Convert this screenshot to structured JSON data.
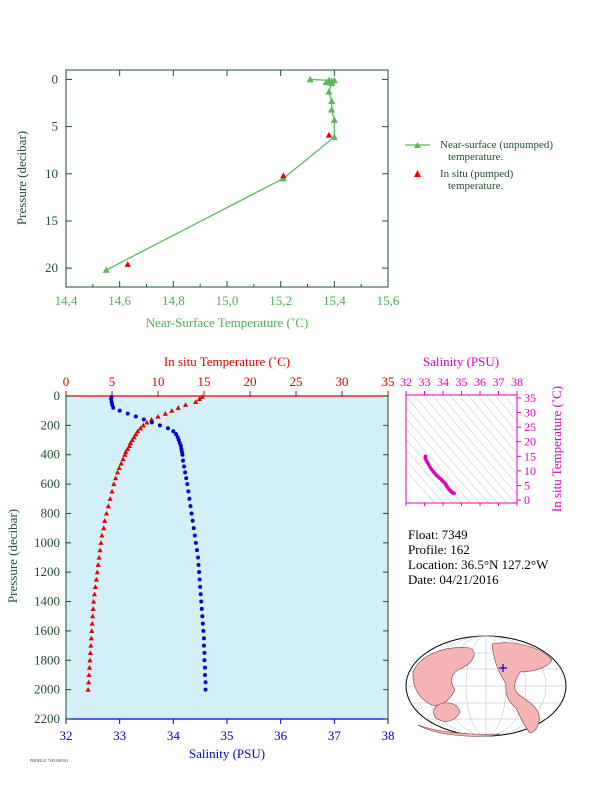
{
  "colors": {
    "green": "#5cb85c",
    "green_axis": "#4caf50",
    "red": "#e00000",
    "blue": "#0000cc",
    "magenta": "#e000c0",
    "dark": "#1f4f2f",
    "panel_bg": "#d3f0f8"
  },
  "chart_data": [
    {
      "type": "line",
      "xlabel": "Near-Surface Temperature (˚C)",
      "ylabel": "Pressure (decibar)",
      "xlim": [
        14.4,
        15.6
      ],
      "ylim": [
        22,
        -1
      ],
      "x_ticks": [
        "14,4",
        "14,6",
        "14,8",
        "15,0",
        "15,2",
        "15,4",
        "15,6"
      ],
      "y_ticks": [
        "0",
        "5",
        "10",
        "15",
        "20"
      ],
      "series": [
        {
          "name": "Near-surface (unpumped) temperature.",
          "marker": "triangle",
          "line": true,
          "points": [
            [
              15.31,
              0.0
            ],
            [
              15.38,
              0.1
            ],
            [
              15.39,
              0.2
            ],
            [
              15.4,
              0.1
            ],
            [
              15.37,
              0.3
            ],
            [
              15.39,
              0.4
            ],
            [
              15.38,
              1.3
            ],
            [
              15.39,
              2.3
            ],
            [
              15.39,
              3.2
            ],
            [
              15.4,
              4.3
            ],
            [
              15.4,
              6.1
            ],
            [
              15.21,
              10.5
            ],
            [
              14.55,
              20.2
            ]
          ]
        },
        {
          "name": "In situ (pumped) temperature.",
          "marker": "triangle",
          "line": false,
          "points": [
            [
              15.38,
              5.9
            ],
            [
              15.21,
              10.2
            ],
            [
              14.63,
              19.6
            ]
          ]
        }
      ]
    },
    {
      "type": "scatter",
      "ylabel": "Pressure (decibar)",
      "top_axis": {
        "label": "In situ Temperature (˚C)",
        "range": [
          0,
          35
        ],
        "ticks": [
          "0",
          "5",
          "10",
          "15",
          "20",
          "25",
          "30",
          "35"
        ]
      },
      "bottom_axis": {
        "label": "Salinity (PSU)",
        "range": [
          32,
          38
        ],
        "ticks": [
          "32",
          "33",
          "34",
          "35",
          "36",
          "37",
          "38"
        ]
      },
      "ylim": [
        2200,
        0
      ],
      "y_ticks": [
        "0",
        "200",
        "400",
        "600",
        "800",
        "1000",
        "1200",
        "1400",
        "1600",
        "1800",
        "2000",
        "2200"
      ],
      "temperature": [
        [
          14.8,
          5
        ],
        [
          14.5,
          20
        ],
        [
          14.1,
          40
        ],
        [
          13.0,
          60
        ],
        [
          12.2,
          80
        ],
        [
          11.5,
          100
        ],
        [
          10.8,
          120
        ],
        [
          10.0,
          140
        ],
        [
          9.3,
          160
        ],
        [
          8.8,
          180
        ],
        [
          8.4,
          200
        ],
        [
          8.1,
          220
        ],
        [
          7.8,
          240
        ],
        [
          7.6,
          260
        ],
        [
          7.4,
          280
        ],
        [
          7.2,
          300
        ],
        [
          7.0,
          320
        ],
        [
          6.9,
          340
        ],
        [
          6.7,
          360
        ],
        [
          6.5,
          380
        ],
        [
          6.4,
          400
        ],
        [
          6.2,
          430
        ],
        [
          6.0,
          460
        ],
        [
          5.8,
          490
        ],
        [
          5.6,
          520
        ],
        [
          5.4,
          560
        ],
        [
          5.2,
          600
        ],
        [
          5.0,
          650
        ],
        [
          4.8,
          700
        ],
        [
          4.6,
          750
        ],
        [
          4.4,
          800
        ],
        [
          4.2,
          850
        ],
        [
          4.1,
          900
        ],
        [
          3.9,
          950
        ],
        [
          3.8,
          1000
        ],
        [
          3.7,
          1050
        ],
        [
          3.6,
          1100
        ],
        [
          3.5,
          1150
        ],
        [
          3.4,
          1200
        ],
        [
          3.3,
          1250
        ],
        [
          3.2,
          1300
        ],
        [
          3.1,
          1350
        ],
        [
          3.0,
          1400
        ],
        [
          2.95,
          1450
        ],
        [
          2.9,
          1500
        ],
        [
          2.85,
          1550
        ],
        [
          2.8,
          1600
        ],
        [
          2.75,
          1650
        ],
        [
          2.7,
          1700
        ],
        [
          2.65,
          1750
        ],
        [
          2.6,
          1800
        ],
        [
          2.55,
          1850
        ],
        [
          2.5,
          1900
        ],
        [
          2.45,
          1950
        ],
        [
          2.4,
          2000
        ]
      ],
      "salinity": [
        [
          32.85,
          5
        ],
        [
          32.84,
          20
        ],
        [
          32.85,
          40
        ],
        [
          32.86,
          60
        ],
        [
          32.88,
          80
        ],
        [
          33.0,
          100
        ],
        [
          33.15,
          120
        ],
        [
          33.3,
          140
        ],
        [
          33.45,
          160
        ],
        [
          33.6,
          180
        ],
        [
          33.75,
          200
        ],
        [
          33.9,
          220
        ],
        [
          34.0,
          240
        ],
        [
          34.05,
          260
        ],
        [
          34.08,
          280
        ],
        [
          34.1,
          300
        ],
        [
          34.12,
          320
        ],
        [
          34.14,
          340
        ],
        [
          34.15,
          360
        ],
        [
          34.16,
          380
        ],
        [
          34.17,
          400
        ],
        [
          34.18,
          440
        ],
        [
          34.2,
          480
        ],
        [
          34.22,
          520
        ],
        [
          34.24,
          560
        ],
        [
          34.26,
          600
        ],
        [
          34.28,
          650
        ],
        [
          34.3,
          700
        ],
        [
          34.32,
          750
        ],
        [
          34.34,
          800
        ],
        [
          34.36,
          850
        ],
        [
          34.38,
          900
        ],
        [
          34.4,
          950
        ],
        [
          34.42,
          1000
        ],
        [
          34.44,
          1050
        ],
        [
          34.46,
          1100
        ],
        [
          34.47,
          1150
        ],
        [
          34.48,
          1200
        ],
        [
          34.49,
          1250
        ],
        [
          34.5,
          1300
        ],
        [
          34.51,
          1350
        ],
        [
          34.52,
          1400
        ],
        [
          34.53,
          1450
        ],
        [
          34.54,
          1500
        ],
        [
          34.55,
          1550
        ],
        [
          34.56,
          1600
        ],
        [
          34.57,
          1650
        ],
        [
          34.57,
          1700
        ],
        [
          34.58,
          1750
        ],
        [
          34.58,
          1800
        ],
        [
          34.59,
          1850
        ],
        [
          34.59,
          1900
        ],
        [
          34.6,
          1950
        ],
        [
          34.6,
          2000
        ]
      ]
    },
    {
      "type": "scatter",
      "xlabel": "Salinity (PSU)",
      "ylabel": "In situ Temperature (˚C)",
      "xlim": [
        32,
        38
      ],
      "ylim": [
        -1,
        36
      ],
      "x_ticks": [
        "32",
        "33",
        "34",
        "35",
        "36",
        "37",
        "38"
      ],
      "y_ticks": [
        "0",
        "5",
        "10",
        "15",
        "20",
        "25",
        "30",
        "35"
      ],
      "points": [
        [
          33.05,
          15.0
        ],
        [
          33.04,
          14.5
        ],
        [
          33.08,
          13.8
        ],
        [
          33.15,
          13.0
        ],
        [
          33.22,
          12.2
        ],
        [
          33.3,
          11.3
        ],
        [
          33.38,
          10.5
        ],
        [
          33.47,
          9.8
        ],
        [
          33.55,
          9.2
        ],
        [
          33.63,
          8.6
        ],
        [
          33.72,
          8.1
        ],
        [
          33.8,
          7.6
        ],
        [
          33.9,
          7.1
        ],
        [
          33.97,
          6.6
        ],
        [
          34.05,
          6.1
        ],
        [
          34.12,
          5.6
        ],
        [
          34.17,
          5.1
        ],
        [
          34.22,
          4.6
        ],
        [
          34.28,
          4.1
        ],
        [
          34.33,
          3.7
        ],
        [
          34.38,
          3.3
        ],
        [
          34.43,
          3.0
        ],
        [
          34.48,
          2.7
        ],
        [
          34.52,
          2.5
        ],
        [
          34.56,
          2.4
        ],
        [
          34.6,
          2.3
        ]
      ]
    }
  ],
  "info": {
    "float": "Float:  7349",
    "profile": "Profile:  162",
    "location": "Location:  36.5°N  127.2°W",
    "date": "Date:  04/21/2016"
  },
  "footnote": "PROFILE 7349.000162",
  "map": {
    "marker": "float-location-marker"
  }
}
